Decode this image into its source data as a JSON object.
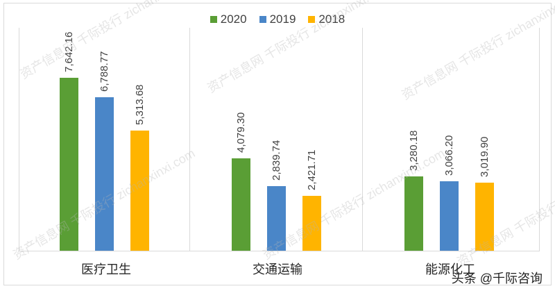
{
  "chart_data": {
    "type": "bar",
    "title": "",
    "xlabel": "",
    "ylabel": "",
    "categories": [
      "医疗卫生",
      "交通运输",
      "能源化工"
    ],
    "series": [
      {
        "name": "2020",
        "color": "#5a9e35",
        "values": [
          7642.16,
          4079.3,
          3280.18
        ]
      },
      {
        "name": "2019",
        "color": "#4a86c8",
        "values": [
          6788.77,
          2839.74,
          3066.2
        ]
      },
      {
        "name": "2018",
        "color": "#ffb400",
        "values": [
          5313.68,
          2421.71,
          3019.9
        ]
      }
    ],
    "data_labels": [
      [
        "7,642.16",
        "6,788.77",
        "5,313.68"
      ],
      [
        "4,079.30",
        "2,839.74",
        "2,421.71"
      ],
      [
        "3,280.18",
        "3,066.20",
        "3,019.90"
      ]
    ],
    "legend_position": "top",
    "grid": false,
    "ylim": [
      0,
      8000
    ]
  },
  "legend": [
    "2020",
    "2019",
    "2018"
  ],
  "watermark": "资产信息网 千际投行 zichanxinxi.com",
  "credit": "头条 @千际咨询"
}
